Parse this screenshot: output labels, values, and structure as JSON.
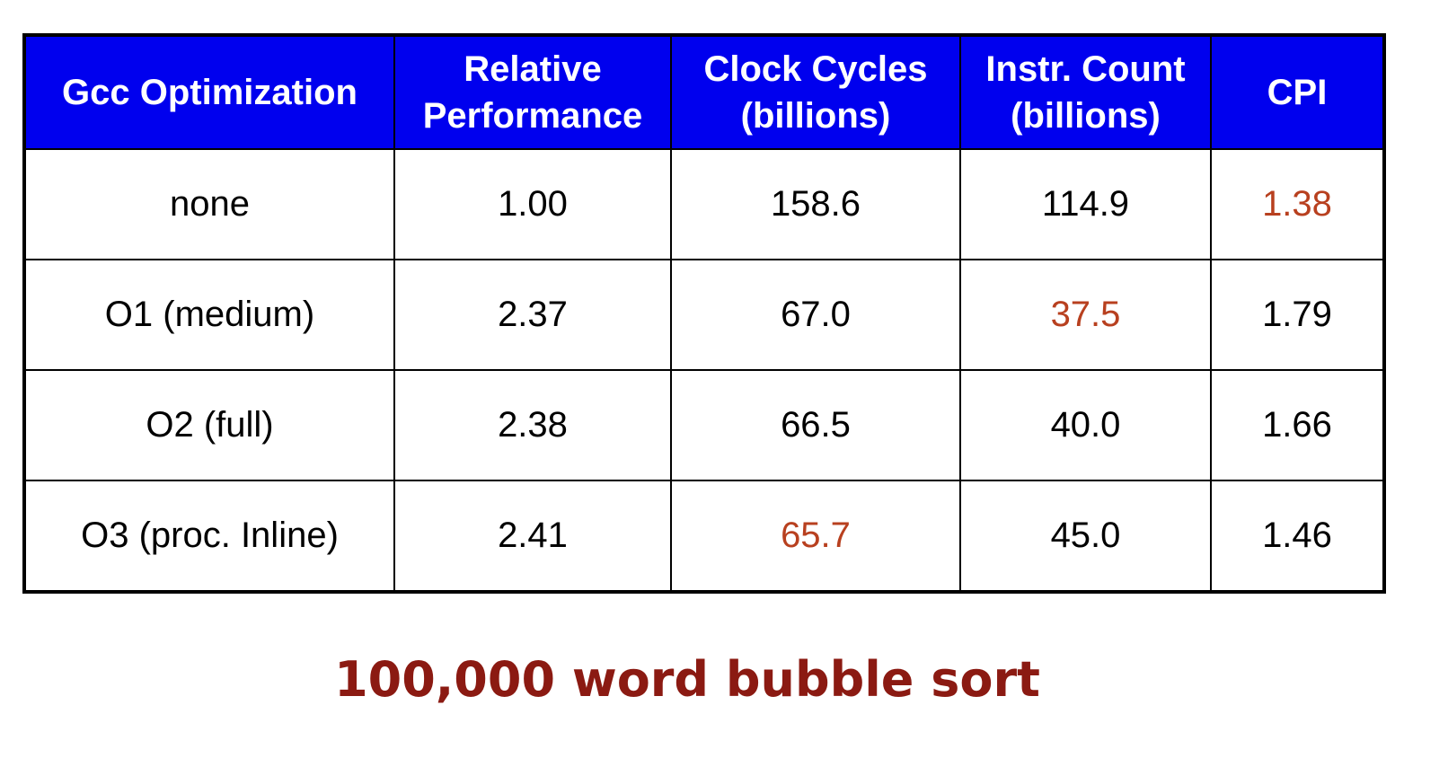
{
  "table": {
    "headers": [
      "Gcc Optimization",
      "Relative Performance",
      "Clock Cycles (billions)",
      "Instr. Count (billions)",
      "CPI"
    ],
    "rows": [
      [
        "none",
        "1.00",
        "158.6",
        "114.9",
        "1.38"
      ],
      [
        "O1 (medium)",
        "2.37",
        "67.0",
        "37.5",
        "1.79"
      ],
      [
        "O2 (full)",
        "2.38",
        "66.5",
        "40.0",
        "1.66"
      ],
      [
        "O3 (proc. Inline)",
        "2.41",
        "65.7",
        "45.0",
        "1.46"
      ]
    ],
    "highlighted_cells": [
      {
        "row": 0,
        "col": 4
      },
      {
        "row": 1,
        "col": 3
      },
      {
        "row": 3,
        "col": 2
      }
    ]
  },
  "caption": "100,000 word bubble sort",
  "colors": {
    "header_bg": "#0000ee",
    "header_text": "#ffffff",
    "highlight_text": "#b8401f",
    "caption_text": "#8b1a12"
  }
}
